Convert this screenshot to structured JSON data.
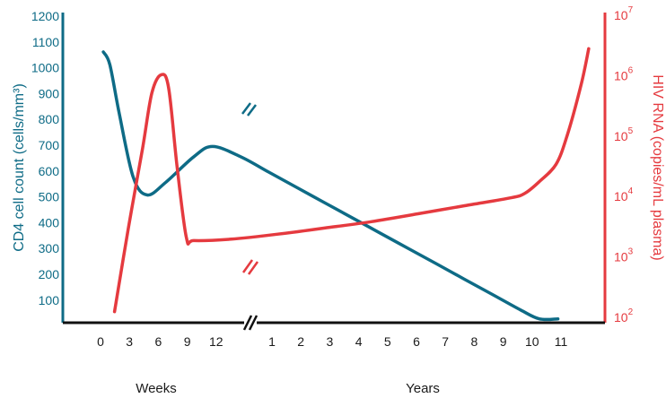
{
  "chart_data": {
    "type": "line",
    "colors": {
      "cd4": "#0e6b86",
      "hiv": "#e53a3f",
      "axis": "#111111",
      "text": "#1a1a1a"
    },
    "left_axis": {
      "label": "CD4 cell count (cells/mm³)",
      "ticks": [
        "1200",
        "1100",
        "1000",
        "900",
        "800",
        "700",
        "600",
        "500",
        "400",
        "300",
        "200",
        "100"
      ],
      "range": [
        0,
        1200
      ]
    },
    "right_axis": {
      "label": "HIV RNA (copies/mL plasma)",
      "scale": "log",
      "ticks": [
        {
          "base": "10",
          "exp": "7"
        },
        {
          "base": "10",
          "exp": "6"
        },
        {
          "base": "10",
          "exp": "5"
        },
        {
          "base": "10",
          "exp": "4"
        },
        {
          "base": "10",
          "exp": "3"
        },
        {
          "base": "10",
          "exp": "2"
        }
      ],
      "range": [
        100,
        10000000
      ]
    },
    "x_axis": {
      "tick_labels": [
        "0",
        "3",
        "6",
        "9",
        "12",
        "1",
        "2",
        "3",
        "4",
        "5",
        "6",
        "7",
        "8",
        "9",
        "10",
        "11"
      ],
      "groups": [
        "Weeks",
        "Years"
      ]
    },
    "series": [
      {
        "name": "CD4 cell count",
        "axis": "left",
        "points": [
          [
            0.3,
            1060
          ],
          [
            1,
            1010
          ],
          [
            2,
            820
          ],
          [
            3.5,
            570
          ],
          [
            5,
            500
          ],
          [
            7,
            550
          ],
          [
            10,
            650
          ],
          [
            12,
            690
          ],
          [
            15,
            650
          ],
          [
            18,
            590
          ],
          [
            21,
            530
          ],
          [
            24,
            470
          ],
          [
            27,
            410
          ],
          [
            30,
            350
          ],
          [
            33,
            290
          ],
          [
            36,
            230
          ],
          [
            39,
            170
          ],
          [
            42,
            110
          ],
          [
            45,
            50
          ],
          [
            47,
            15
          ],
          [
            49,
            15
          ]
        ]
      },
      {
        "name": "HIV RNA",
        "axis": "right",
        "points": [
          [
            1.5,
            120
          ],
          [
            3,
            3000
          ],
          [
            4.5,
            60000
          ],
          [
            5.5,
            500000
          ],
          [
            6.5,
            1000000
          ],
          [
            7.3,
            600000
          ],
          [
            8.2,
            30000
          ],
          [
            9.2,
            2000
          ],
          [
            10,
            1800
          ],
          [
            14,
            1900
          ],
          [
            19,
            2300
          ],
          [
            24,
            2900
          ],
          [
            29,
            3700
          ],
          [
            34,
            5000
          ],
          [
            39,
            6800
          ],
          [
            44,
            9200
          ],
          [
            45.5,
            11000
          ],
          [
            47,
            17000
          ],
          [
            48.8,
            33000
          ],
          [
            50,
            100000
          ],
          [
            51.5,
            700000
          ],
          [
            52.3,
            2700000
          ]
        ]
      }
    ]
  }
}
